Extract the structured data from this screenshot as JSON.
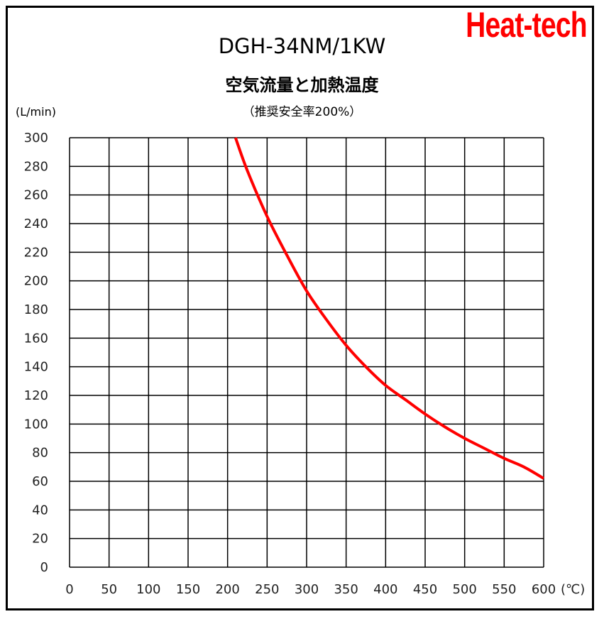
{
  "brand": {
    "text": "Heat-tech",
    "color": "#ff0000"
  },
  "chart_data": {
    "type": "line",
    "title": "DGH-34NM/1KW",
    "subtitle": "空気流量と加熱温度",
    "note": "（推奨安全率200%）",
    "ylabel": "(L/min)",
    "xlabel": "(℃)",
    "xlim": [
      0,
      600
    ],
    "ylim": [
      0,
      300
    ],
    "x_ticks": [
      0,
      50,
      100,
      150,
      200,
      250,
      300,
      350,
      400,
      450,
      500,
      550,
      600
    ],
    "y_ticks": [
      0,
      20,
      40,
      60,
      80,
      100,
      120,
      140,
      160,
      180,
      200,
      220,
      240,
      260,
      280,
      300
    ],
    "grid": true,
    "line_color": "#ff0000",
    "series": [
      {
        "x": [
          210,
          225,
          250,
          275,
          300,
          325,
          350,
          375,
          400,
          425,
          450,
          475,
          500,
          525,
          550,
          575,
          600
        ],
        "y": [
          300,
          277,
          245,
          218,
          193,
          173,
          155,
          140,
          127,
          117,
          107,
          98,
          90,
          83,
          76,
          70,
          62
        ]
      }
    ]
  }
}
